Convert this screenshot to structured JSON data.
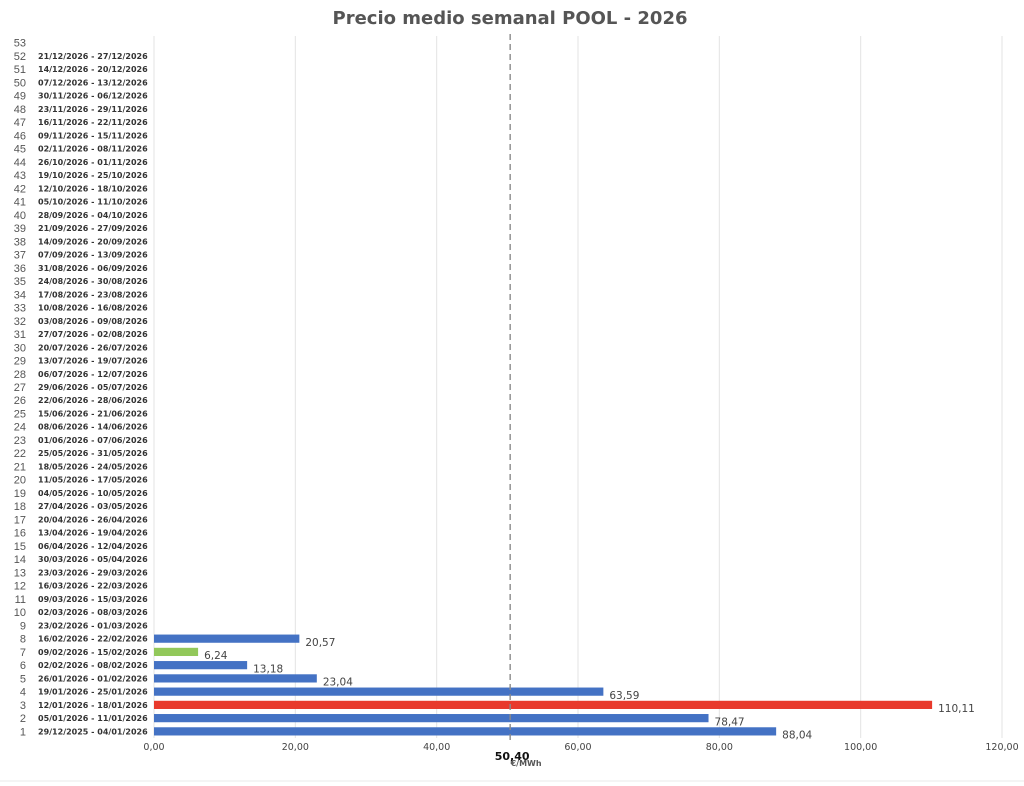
{
  "chart_data": {
    "type": "bar",
    "orientation": "horizontal",
    "title": "Precio medio semanal POOL - 2026",
    "xlabel": "€/MWh",
    "xlim": [
      0,
      120
    ],
    "xticks": [
      "0,00",
      "20,00",
      "40,00",
      "60,00",
      "80,00",
      "100,00",
      "120,00"
    ],
    "grid": true,
    "average": {
      "value": 50.4,
      "label": "50,40"
    },
    "colors": {
      "default": "#4472c4",
      "max": "#e8392b",
      "min": "#92c85a"
    },
    "weeks": [
      {
        "num": "1",
        "range": "29/12/2025 - 04/01/2026",
        "value": 88.04,
        "label": "88,04",
        "highlight": "default"
      },
      {
        "num": "2",
        "range": "05/01/2026 - 11/01/2026",
        "value": 78.47,
        "label": "78,47",
        "highlight": "default"
      },
      {
        "num": "3",
        "range": "12/01/2026 - 18/01/2026",
        "value": 110.11,
        "label": "110,11",
        "highlight": "max"
      },
      {
        "num": "4",
        "range": "19/01/2026 - 25/01/2026",
        "value": 63.59,
        "label": "63,59",
        "highlight": "default"
      },
      {
        "num": "5",
        "range": "26/01/2026 - 01/02/2026",
        "value": 23.04,
        "label": "23,04",
        "highlight": "default"
      },
      {
        "num": "6",
        "range": "02/02/2026 - 08/02/2026",
        "value": 13.18,
        "label": "13,18",
        "highlight": "default"
      },
      {
        "num": "7",
        "range": "09/02/2026 - 15/02/2026",
        "value": 6.24,
        "label": "6,24",
        "highlight": "min"
      },
      {
        "num": "8",
        "range": "16/02/2026 - 22/02/2026",
        "value": 20.57,
        "label": "20,57",
        "highlight": "default"
      },
      {
        "num": "9",
        "range": "23/02/2026 - 01/03/2026"
      },
      {
        "num": "10",
        "range": "02/03/2026 - 08/03/2026"
      },
      {
        "num": "11",
        "range": "09/03/2026 - 15/03/2026"
      },
      {
        "num": "12",
        "range": "16/03/2026 - 22/03/2026"
      },
      {
        "num": "13",
        "range": "23/03/2026 - 29/03/2026"
      },
      {
        "num": "14",
        "range": "30/03/2026 - 05/04/2026"
      },
      {
        "num": "15",
        "range": "06/04/2026 - 12/04/2026"
      },
      {
        "num": "16",
        "range": "13/04/2026 - 19/04/2026"
      },
      {
        "num": "17",
        "range": "20/04/2026 - 26/04/2026"
      },
      {
        "num": "18",
        "range": "27/04/2026 - 03/05/2026"
      },
      {
        "num": "19",
        "range": "04/05/2026 - 10/05/2026"
      },
      {
        "num": "20",
        "range": "11/05/2026 - 17/05/2026"
      },
      {
        "num": "21",
        "range": "18/05/2026 - 24/05/2026"
      },
      {
        "num": "22",
        "range": "25/05/2026 - 31/05/2026"
      },
      {
        "num": "23",
        "range": "01/06/2026 - 07/06/2026"
      },
      {
        "num": "24",
        "range": "08/06/2026 - 14/06/2026"
      },
      {
        "num": "25",
        "range": "15/06/2026 - 21/06/2026"
      },
      {
        "num": "26",
        "range": "22/06/2026 - 28/06/2026"
      },
      {
        "num": "27",
        "range": "29/06/2026 - 05/07/2026"
      },
      {
        "num": "28",
        "range": "06/07/2026 - 12/07/2026"
      },
      {
        "num": "29",
        "range": "13/07/2026 - 19/07/2026"
      },
      {
        "num": "30",
        "range": "20/07/2026 - 26/07/2026"
      },
      {
        "num": "31",
        "range": "27/07/2026 - 02/08/2026"
      },
      {
        "num": "32",
        "range": "03/08/2026 - 09/08/2026"
      },
      {
        "num": "33",
        "range": "10/08/2026 - 16/08/2026"
      },
      {
        "num": "34",
        "range": "17/08/2026 - 23/08/2026"
      },
      {
        "num": "35",
        "range": "24/08/2026 - 30/08/2026"
      },
      {
        "num": "36",
        "range": "31/08/2026 - 06/09/2026"
      },
      {
        "num": "37",
        "range": "07/09/2026 - 13/09/2026"
      },
      {
        "num": "38",
        "range": "14/09/2026 - 20/09/2026"
      },
      {
        "num": "39",
        "range": "21/09/2026 - 27/09/2026"
      },
      {
        "num": "40",
        "range": "28/09/2026 - 04/10/2026"
      },
      {
        "num": "41",
        "range": "05/10/2026 - 11/10/2026"
      },
      {
        "num": "42",
        "range": "12/10/2026 - 18/10/2026"
      },
      {
        "num": "43",
        "range": "19/10/2026 - 25/10/2026"
      },
      {
        "num": "44",
        "range": "26/10/2026 - 01/11/2026"
      },
      {
        "num": "45",
        "range": "02/11/2026 - 08/11/2026"
      },
      {
        "num": "46",
        "range": "09/11/2026 - 15/11/2026"
      },
      {
        "num": "47",
        "range": "16/11/2026 - 22/11/2026"
      },
      {
        "num": "48",
        "range": "23/11/2026 - 29/11/2026"
      },
      {
        "num": "49",
        "range": "30/11/2026 - 06/12/2026"
      },
      {
        "num": "50",
        "range": "07/12/2026 - 13/12/2026"
      },
      {
        "num": "51",
        "range": "14/12/2026 - 20/12/2026"
      },
      {
        "num": "52",
        "range": "21/12/2026 - 27/12/2026"
      },
      {
        "num": "53"
      }
    ]
  }
}
